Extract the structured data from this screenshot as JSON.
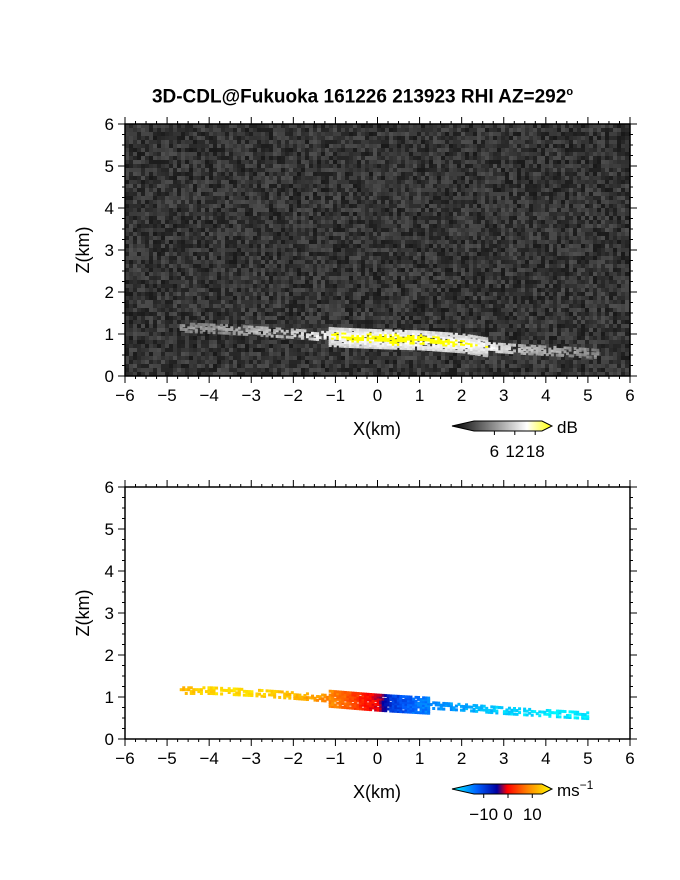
{
  "title": "3D-CDL@Fukuoka 161226 213923 RHI AZ=292",
  "title_superscript": "o",
  "chart_data": [
    {
      "type": "heatmap",
      "name": "backscatter-intensity",
      "xlabel": "X(km)",
      "ylabel": "Z(km)",
      "xlim": [
        -6,
        6
      ],
      "ylim": [
        0,
        6
      ],
      "xticks": [
        "−6",
        "−5",
        "−4",
        "−3",
        "−2",
        "−1",
        "0",
        "1",
        "2",
        "3",
        "4",
        "5",
        "6"
      ],
      "yticks": [
        "0",
        "1",
        "2",
        "3",
        "4",
        "5",
        "6"
      ],
      "background": "dark gray noise",
      "colorbar": {
        "unit": "dB",
        "ticks": [
          "6",
          "12",
          "18"
        ],
        "tick_values": [
          6,
          12,
          18
        ],
        "range": [
          0,
          20
        ],
        "colors": [
          "#000000",
          "#ffffff",
          "#ffff00"
        ]
      },
      "features": [
        {
          "label": "",
          "x": [
            -4.7,
            -3.5,
            -2,
            -1,
            0,
            1,
            2,
            2.6,
            3.5,
            4.5,
            5.2
          ],
          "z": [
            1.2,
            1.15,
            1.05,
            0.97,
            0.93,
            0.9,
            0.83,
            0.73,
            0.67,
            0.62,
            0.57
          ],
          "intensity_db": [
            8,
            10,
            14,
            19,
            20,
            20,
            19,
            18,
            12,
            10,
            8
          ]
        }
      ]
    },
    {
      "type": "heatmap",
      "name": "radial-velocity",
      "xlabel": "X(km)",
      "ylabel": "Z(km)",
      "xlim": [
        -6,
        6
      ],
      "ylim": [
        0,
        6
      ],
      "xticks": [
        "−6",
        "−5",
        "−4",
        "−3",
        "−2",
        "−1",
        "0",
        "1",
        "2",
        "3",
        "4",
        "5",
        "6"
      ],
      "yticks": [
        "0",
        "1",
        "2",
        "3",
        "4",
        "5",
        "6"
      ],
      "colorbar": {
        "unit": "ms",
        "unit_superscript": "−1",
        "ticks": [
          "−10",
          "0",
          "10"
        ],
        "tick_values": [
          -10,
          0,
          10
        ],
        "range": [
          -14,
          14
        ],
        "colors": [
          "#00ffff",
          "#0060ff",
          "#0000a0",
          "#ff0000",
          "#ff8000",
          "#ffff00"
        ]
      },
      "features": [
        {
          "x": [
            -4.7,
            -4.0,
            -3.0,
            -2.0,
            -1.0,
            -0.4,
            0.0,
            0.3,
            1.0,
            2.0,
            3.0,
            4.0,
            5.0
          ],
          "z": [
            1.2,
            1.2,
            1.15,
            1.08,
            1.0,
            0.95,
            0.92,
            0.9,
            0.86,
            0.8,
            0.72,
            0.66,
            0.6
          ],
          "velocity_ms": [
            10,
            12,
            12,
            10,
            7,
            3,
            1,
            -5,
            -8,
            -10,
            -12,
            -13,
            -13
          ]
        }
      ]
    }
  ]
}
